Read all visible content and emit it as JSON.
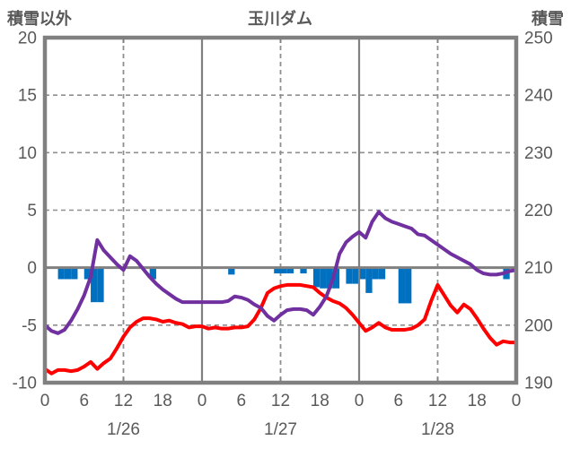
{
  "header": {
    "left_axis_title": "積雪以外",
    "title": "玉川ダム",
    "right_axis_title": "積雪"
  },
  "colors": {
    "temperature_line": "#FF0000",
    "snow_depth_line": "#7030A0",
    "bar": "#0070C0",
    "axis": "#808080",
    "grid_dashed": "#8F8F8F",
    "text": "#595959"
  },
  "chart_data": {
    "type": "combo",
    "title": "玉川ダム",
    "left_axis": {
      "label": "積雪以外",
      "max": 20,
      "min": -10,
      "ticks": [
        20,
        15,
        10,
        5,
        0,
        -5,
        -10
      ],
      "tick_labels": [
        "20",
        "15",
        "10",
        "5",
        "0",
        "-5",
        "-10"
      ]
    },
    "right_axis": {
      "label": "積雪",
      "max": 250,
      "min": 190,
      "ticks": [
        250,
        240,
        230,
        220,
        210,
        200,
        190
      ],
      "tick_labels": [
        "250",
        "240",
        "230",
        "220",
        "210",
        "200",
        "190"
      ]
    },
    "x_axis": {
      "hours_total": 72,
      "hour_label_step": 6,
      "hour_labels": [
        "0",
        "6",
        "12",
        "18",
        "0",
        "6",
        "12",
        "18",
        "0",
        "6",
        "12",
        "18",
        "0"
      ],
      "date_labels": [
        "1/26",
        "1/27",
        "1/28"
      ],
      "date_label_hours": [
        12,
        36,
        60
      ]
    },
    "grid": {
      "dashed_levels_left": [
        15,
        10,
        5,
        -5
      ],
      "zero_level_left": 0,
      "dashed_hours": [
        12,
        36,
        60
      ],
      "solid_hours": [
        24,
        48
      ],
      "tick_hours": [
        12,
        24,
        36,
        48,
        60
      ]
    },
    "series": [
      {
        "name": "temperature-line",
        "type": "line",
        "axis": "left",
        "color": "#FF0000",
        "values": [
          -8.8,
          -9.2,
          -8.9,
          -8.9,
          -9.0,
          -8.9,
          -8.6,
          -8.2,
          -8.8,
          -8.3,
          -7.9,
          -7.0,
          -6.0,
          -5.2,
          -4.7,
          -4.4,
          -4.4,
          -4.5,
          -4.7,
          -4.6,
          -4.8,
          -4.9,
          -5.2,
          -5.1,
          -5.1,
          -5.3,
          -5.2,
          -5.3,
          -5.3,
          -5.2,
          -5.2,
          -5.1,
          -4.5,
          -3.5,
          -2.2,
          -1.8,
          -1.6,
          -1.5,
          -1.5,
          -1.5,
          -1.6,
          -1.7,
          -2.2,
          -2.6,
          -2.9,
          -3.1,
          -3.5,
          -4.1,
          -4.8,
          -5.5,
          -5.2,
          -4.8,
          -5.2,
          -5.4,
          -5.4,
          -5.4,
          -5.3,
          -5.0,
          -4.5,
          -2.9,
          -1.5,
          -2.4,
          -3.3,
          -3.9,
          -3.2,
          -3.6,
          -4.4,
          -5.3,
          -6.1,
          -6.7,
          -6.4,
          -6.5,
          -6.5
        ]
      },
      {
        "name": "snow-depth-line",
        "type": "line",
        "axis": "right",
        "color": "#7030A0",
        "values": [
          200.0,
          199.0,
          198.6,
          199.2,
          200.8,
          202.8,
          205.2,
          208.4,
          214.8,
          213.0,
          211.8,
          210.6,
          209.6,
          212.0,
          211.2,
          209.8,
          208.4,
          207.2,
          206.2,
          205.4,
          204.6,
          204.0,
          204.0,
          204.0,
          204.0,
          204.0,
          204.0,
          204.0,
          204.2,
          205.0,
          204.8,
          204.4,
          203.6,
          203.0,
          201.6,
          200.8,
          201.8,
          202.6,
          202.8,
          202.8,
          202.6,
          201.8,
          203.2,
          205.0,
          208.0,
          212.4,
          214.4,
          215.4,
          216.2,
          215.2,
          218.0,
          219.7,
          218.6,
          218.0,
          217.6,
          217.2,
          216.8,
          215.8,
          215.6,
          214.8,
          214.0,
          213.2,
          212.4,
          211.8,
          211.2,
          210.6,
          209.6,
          209.0,
          208.8,
          208.8,
          209.0,
          209.4,
          209.6
        ]
      },
      {
        "name": "hourly-bars",
        "type": "bar",
        "axis": "left",
        "color": "#0070C0",
        "points": [
          {
            "hour": 2,
            "value": -1.0
          },
          {
            "hour": 3,
            "value": -1.0
          },
          {
            "hour": 4,
            "value": -1.0
          },
          {
            "hour": 6,
            "value": -1.0
          },
          {
            "hour": 7,
            "value": -3.0
          },
          {
            "hour": 8,
            "value": -3.0
          },
          {
            "hour": 16,
            "value": -1.0
          },
          {
            "hour": 28,
            "value": -0.6
          },
          {
            "hour": 35,
            "value": -0.5
          },
          {
            "hour": 36,
            "value": -0.5
          },
          {
            "hour": 37,
            "value": -0.5
          },
          {
            "hour": 39,
            "value": -0.5
          },
          {
            "hour": 41,
            "value": -1.7
          },
          {
            "hour": 42,
            "value": -1.8
          },
          {
            "hour": 43,
            "value": -1.8
          },
          {
            "hour": 44,
            "value": -1.8
          },
          {
            "hour": 46,
            "value": -1.4
          },
          {
            "hour": 47,
            "value": -1.4
          },
          {
            "hour": 48,
            "value": -1.0
          },
          {
            "hour": 49,
            "value": -2.2
          },
          {
            "hour": 50,
            "value": -1.0
          },
          {
            "hour": 51,
            "value": -1.0
          },
          {
            "hour": 54,
            "value": -3.1
          },
          {
            "hour": 55,
            "value": -3.1
          },
          {
            "hour": 70,
            "value": -1.0
          }
        ]
      }
    ]
  }
}
